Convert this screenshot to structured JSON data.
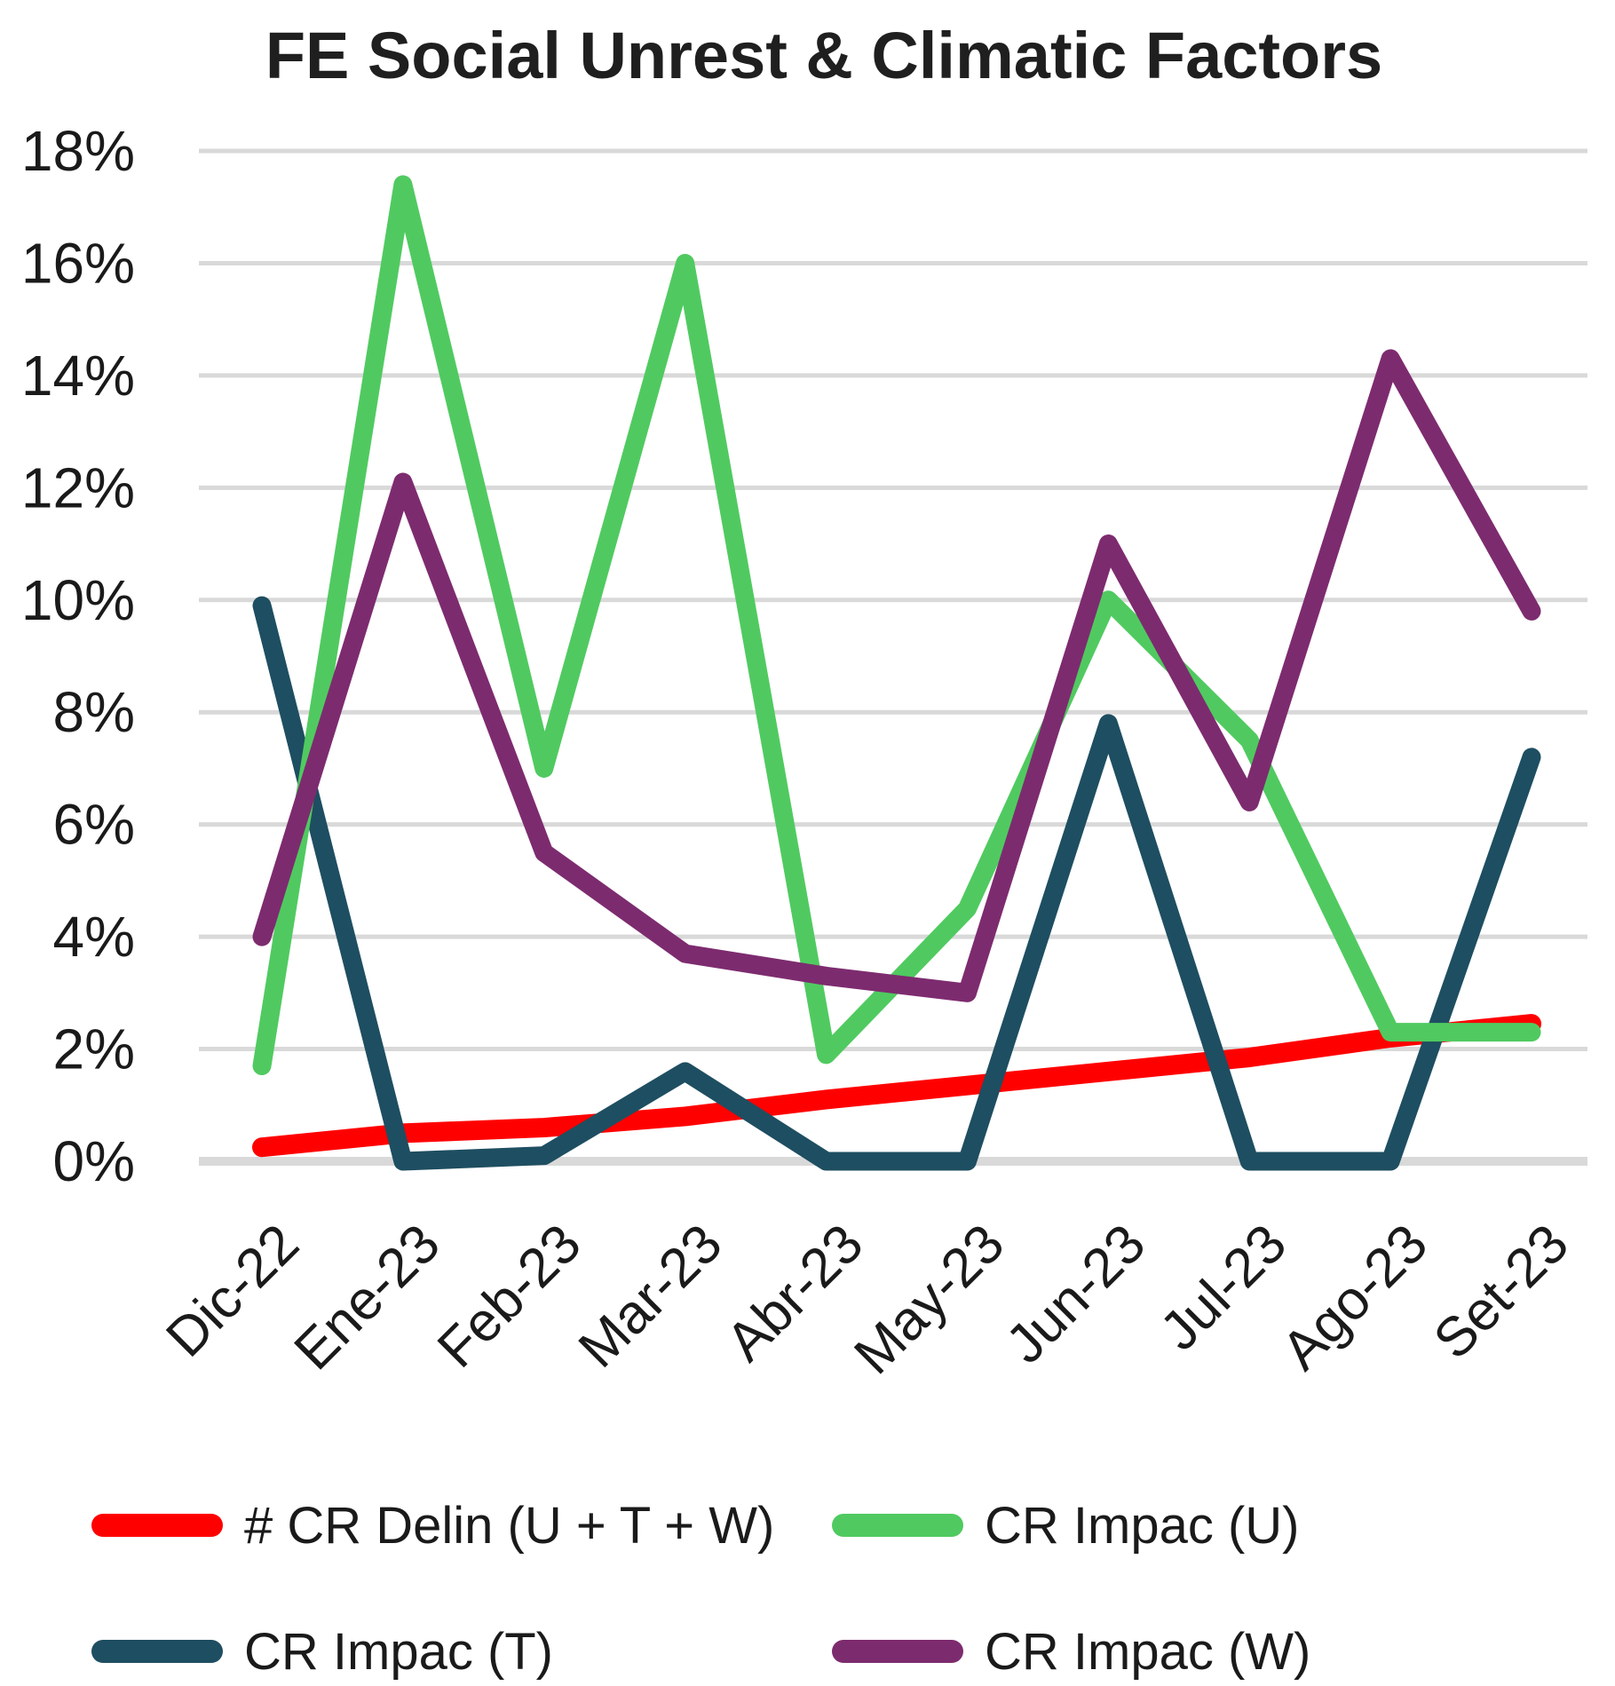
{
  "chart_data": {
    "type": "line",
    "title": "FE Social Unrest & Climatic Factors",
    "categories": [
      "Dic-22",
      "Ene-23",
      "Feb-23",
      "Mar-23",
      "Abr-23",
      "May-23",
      "Jun-23",
      "Jul-23",
      "Ago-23",
      "Set-23"
    ],
    "y_ticks": [
      "18%",
      "16%",
      "14%",
      "12%",
      "10%",
      "8%",
      "6%",
      "4%",
      "2%",
      "0%"
    ],
    "ylim": [
      0,
      18
    ],
    "y_unit": "%",
    "grid": true,
    "legend_position": "bottom",
    "gridline_color": "#D9D9D9",
    "text_color": "#1a1a1a",
    "series": [
      {
        "name": "# CR Delin (U + T + W)",
        "color": "#FF0000",
        "values": [
          0.25,
          0.5,
          0.6,
          0.8,
          1.1,
          1.35,
          1.6,
          1.85,
          2.2,
          2.45
        ]
      },
      {
        "name": "CR Impac (U)",
        "color": "#50CA60",
        "values": [
          1.7,
          17.4,
          7.0,
          16.0,
          1.9,
          4.5,
          10.0,
          7.5,
          2.3,
          2.3
        ]
      },
      {
        "name": "CR Impac (T)",
        "color": "#1E4E61",
        "values": [
          9.9,
          0.0,
          0.1,
          1.6,
          0.0,
          0.0,
          7.8,
          0.0,
          0.0,
          7.2
        ]
      },
      {
        "name": "CR Impac (W)",
        "color": "#7D2B6F",
        "values": [
          4.0,
          12.1,
          5.5,
          3.7,
          3.3,
          3.0,
          11.0,
          6.4,
          14.3,
          9.8
        ]
      }
    ]
  }
}
